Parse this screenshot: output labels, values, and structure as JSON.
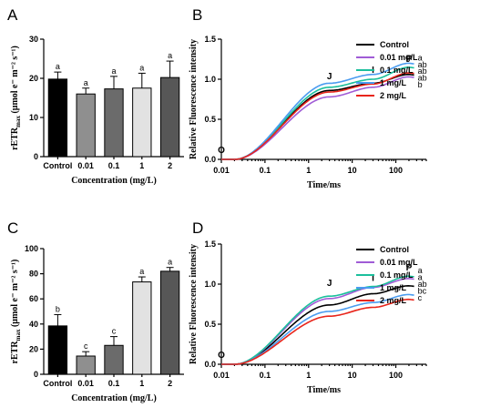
{
  "colors": {
    "Control": "#000000",
    "0.01 mg/L": "#a05cd6",
    "0.1 mg/L": "#1bbf9c",
    "1 mg/L": "#4a9cf0",
    "2 mg/L": "#e8251b"
  },
  "chart_data": [
    {
      "panel": "A",
      "type": "bar",
      "ylabel_main": "rETR",
      "ylabel_sub": "max",
      "ylabel_units": "(μmol e⁻ m⁻² s⁻¹)",
      "xlabel": "Concentration (mg/L)",
      "categories": [
        "Control",
        "0.01",
        "0.1",
        "1",
        "2"
      ],
      "values": [
        19.8,
        16.0,
        17.3,
        17.5,
        20.2
      ],
      "errors": [
        1.8,
        1.5,
        3.2,
        3.8,
        4.2
      ],
      "letters": [
        "a",
        "a",
        "a",
        "a",
        "a"
      ],
      "bar_colors": [
        "#000000",
        "#8f8f8f",
        "#6b6b6b",
        "#e2e2e2",
        "#575757"
      ],
      "ylim": [
        0,
        30
      ],
      "yticks": [
        0,
        10,
        20,
        30
      ]
    },
    {
      "panel": "B",
      "type": "line",
      "xscale": "log",
      "xlabel": "Time/ms",
      "ylabel": "Relative Fluorescence intensity",
      "xticks": [
        "0.01",
        "0.1",
        "1",
        "10",
        "100"
      ],
      "yticks": [
        "0.0",
        "0.5",
        "1.0",
        "1.5"
      ],
      "xlim": [
        0.01,
        500
      ],
      "ylim": [
        0,
        1.5
      ],
      "phase_labels": [
        {
          "text": "O",
          "x": 0.01,
          "y": 0.08
        },
        {
          "text": "J",
          "x": 3,
          "y": 1.0
        },
        {
          "text": "I",
          "x": 30,
          "y": 1.08
        },
        {
          "text": "P",
          "x": 200,
          "y": 1.22
        }
      ],
      "series": [
        {
          "name": "Control",
          "J": 0.86,
          "I": 0.95,
          "P": 1.06,
          "letter": "ab"
        },
        {
          "name": "0.01 mg/L",
          "J": 0.78,
          "I": 0.9,
          "P": 1.03,
          "letter": "b"
        },
        {
          "name": "0.1 mg/L",
          "J": 0.9,
          "I": 1.0,
          "P": 1.15,
          "letter": "ab"
        },
        {
          "name": "1 mg/L",
          "J": 0.95,
          "I": 1.06,
          "P": 1.2,
          "letter": "a"
        },
        {
          "name": "2 mg/L",
          "J": 0.84,
          "I": 0.94,
          "P": 1.08,
          "letter": "ab"
        }
      ],
      "legend": [
        "Control",
        "0.01 mg/L",
        "0.1 mg/L",
        "1 mg/L",
        "2 mg/L"
      ],
      "legend_position": "top-right"
    },
    {
      "panel": "C",
      "type": "bar",
      "ylabel_main": "rETR",
      "ylabel_sub": "max",
      "ylabel_units": "(μmol e⁻ m⁻² s⁻¹)",
      "xlabel": "Concentration (mg/L)",
      "categories": [
        "Control",
        "0.01",
        "0.1",
        "1",
        "2"
      ],
      "values": [
        38.5,
        14.5,
        23.0,
        73.5,
        82.0
      ],
      "errors": [
        9.0,
        3.5,
        7.0,
        4.0,
        3.0
      ],
      "letters": [
        "b",
        "c",
        "c",
        "a",
        "a"
      ],
      "bar_colors": [
        "#000000",
        "#8f8f8f",
        "#6b6b6b",
        "#e2e2e2",
        "#575757"
      ],
      "ylim": [
        0,
        100
      ],
      "yticks": [
        0,
        20,
        40,
        60,
        80,
        100
      ]
    },
    {
      "panel": "D",
      "type": "line",
      "xscale": "log",
      "xlabel": "Time/ms",
      "ylabel": "Relative Fluorescence intensity",
      "xticks": [
        "0.01",
        "0.1",
        "1",
        "10",
        "100"
      ],
      "yticks": [
        "0.0",
        "0.5",
        "1.0",
        "1.5"
      ],
      "xlim": [
        0.01,
        500
      ],
      "ylim": [
        0,
        1.5
      ],
      "phase_labels": [
        {
          "text": "O",
          "x": 0.01,
          "y": 0.08
        },
        {
          "text": "J",
          "x": 3,
          "y": 0.98
        },
        {
          "text": "I",
          "x": 30,
          "y": 1.04
        },
        {
          "text": "P",
          "x": 200,
          "y": 1.17
        }
      ],
      "series": [
        {
          "name": "Control",
          "J": 0.74,
          "I": 0.88,
          "P": 0.98,
          "letter": "ab"
        },
        {
          "name": "0.01 mg/L",
          "J": 0.82,
          "I": 0.96,
          "P": 1.07,
          "letter": "a"
        },
        {
          "name": "0.1 mg/L",
          "J": 0.85,
          "I": 0.97,
          "P": 1.1,
          "letter": "a"
        },
        {
          "name": "1 mg/L",
          "J": 0.66,
          "I": 0.77,
          "P": 0.87,
          "letter": "bc"
        },
        {
          "name": "2 mg/L",
          "J": 0.6,
          "I": 0.71,
          "P": 0.81,
          "letter": "c"
        }
      ],
      "legend": [
        "Control",
        "0.01 mg/L",
        "0.1 mg/L",
        "1 mg/L",
        "2 mg/L"
      ],
      "legend_position": "top-right"
    }
  ]
}
